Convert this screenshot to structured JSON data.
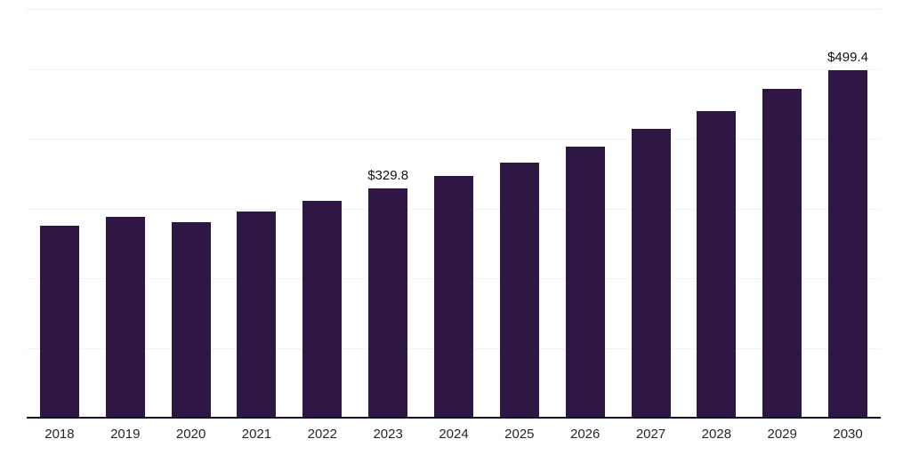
{
  "chart_data": {
    "type": "bar",
    "title": "",
    "xlabel": "",
    "ylabel": "",
    "categories": [
      "2018",
      "2019",
      "2020",
      "2021",
      "2022",
      "2023",
      "2024",
      "2025",
      "2026",
      "2027",
      "2028",
      "2029",
      "2030"
    ],
    "values": [
      276.4,
      289.1,
      281.5,
      296.8,
      312.1,
      329.8,
      347.7,
      366.8,
      389.8,
      415.2,
      440.7,
      472.5,
      499.4
    ],
    "data_labels": [
      "",
      "",
      "",
      "",
      "",
      "$329.8",
      "",
      "",
      "",
      "",
      "",
      "",
      "$499.4"
    ],
    "ylim": [
      0,
      586
    ],
    "gridline_values": [
      100,
      200,
      300,
      400,
      500
    ],
    "grid_on": true,
    "legend": "none",
    "bar_color": "#2e1745",
    "axis_color": "#13132b",
    "grid_color": "#f2f2f5",
    "label_color": "#111111",
    "tick_label_color": "#26262b"
  }
}
